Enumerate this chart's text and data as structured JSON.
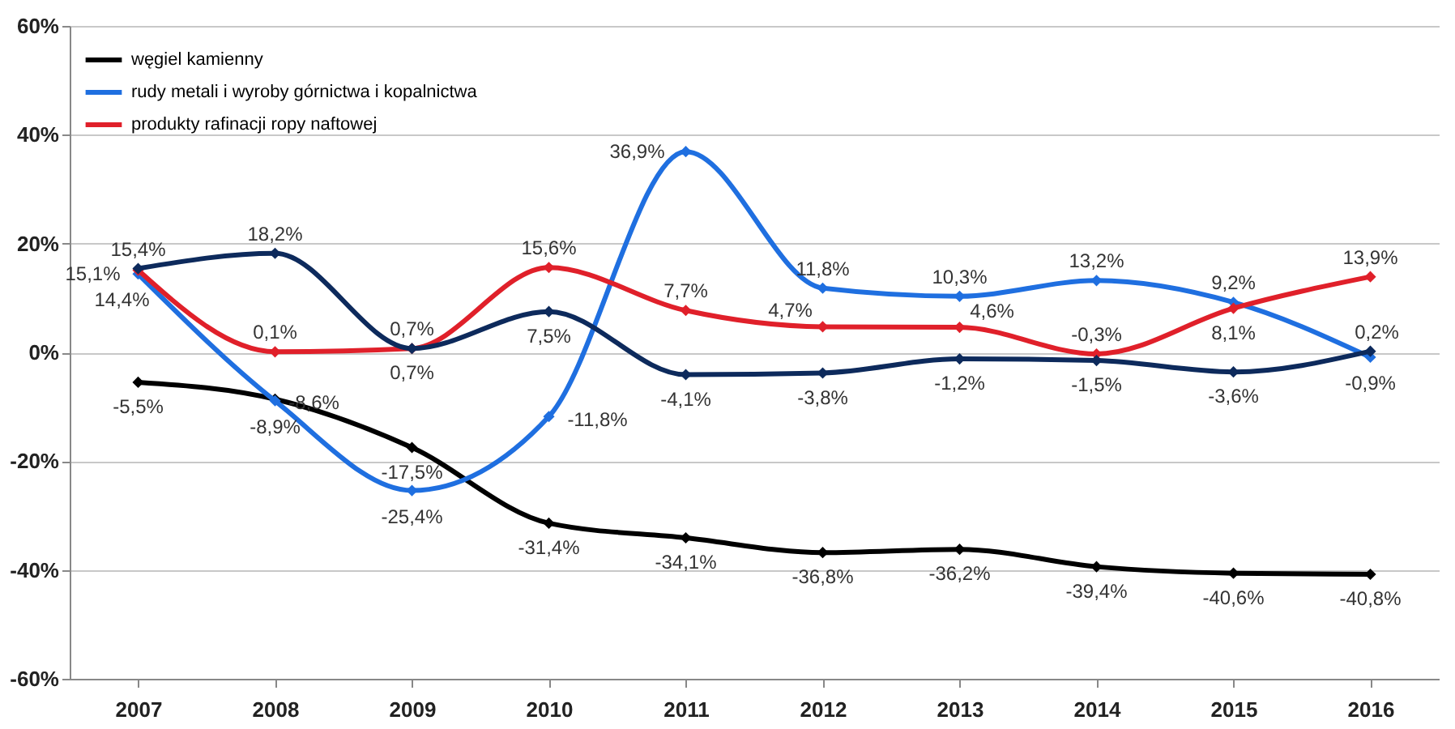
{
  "chart_data": {
    "type": "line",
    "categories": [
      "2007",
      "2008",
      "2009",
      "2010",
      "2011",
      "2012",
      "2013",
      "2014",
      "2015",
      "2016"
    ],
    "series": [
      {
        "name": "węgiel kamienny",
        "color": "#000000",
        "values": [
          -5.5,
          -8.6,
          -17.5,
          -31.4,
          -34.1,
          -36.8,
          -36.2,
          -39.4,
          -40.6,
          -40.8
        ],
        "value_labels": [
          "-5,5%",
          "-8,6%",
          "-17,5%",
          "-31,4%",
          "-34,1%",
          "-36,8%",
          "-36,2%",
          "-39,4%",
          "-40,6%",
          "-40,8%"
        ]
      },
      {
        "name": "rudy metali i wyroby górnictwa i kopalnictwa",
        "color": "#1f6fe0",
        "values": [
          14.4,
          -8.9,
          -25.4,
          -11.8,
          36.9,
          11.8,
          10.3,
          13.2,
          9.2,
          -0.9
        ],
        "value_labels": [
          "14,4%",
          "-8,9%",
          "-25,4%",
          "-11,8%",
          "36,9%",
          "11,8%",
          "10,3%",
          "13,2%",
          "9,2%",
          "-0,9%"
        ]
      },
      {
        "name": "produkty rafinacji ropy naftowej",
        "color": "#e0202a",
        "values": [
          15.1,
          0.1,
          0.7,
          15.6,
          7.7,
          4.7,
          4.6,
          -0.3,
          8.1,
          13.9
        ],
        "value_labels": [
          "15,1%",
          "0,1%",
          "0,7%",
          "15,6%",
          "7,7%",
          "4,7%",
          "4,6%",
          "-0,3%",
          "8,1%",
          "13,9%"
        ]
      },
      {
        "color": "#0d2a5c",
        "values": [
          15.4,
          18.2,
          0.7,
          7.5,
          -4.1,
          -3.8,
          -1.2,
          -1.5,
          -3.6,
          0.2
        ],
        "value_labels": [
          "15,4%",
          "18,2%",
          "0,7%",
          "7,5%",
          "-4,1%",
          "-3,8%",
          "-1,2%",
          "-1,5%",
          "-3,6%",
          "0,2%"
        ]
      }
    ],
    "ylim": [
      -60,
      60
    ],
    "yticks": [
      {
        "value": -60,
        "label": "-60%"
      },
      {
        "value": -40,
        "label": "-40%"
      },
      {
        "value": -20,
        "label": "-20%"
      },
      {
        "value": 0,
        "label": "0%"
      },
      {
        "value": 20,
        "label": "20%"
      },
      {
        "value": 40,
        "label": "40%"
      },
      {
        "value": 60,
        "label": "60%"
      }
    ],
    "grid": "y",
    "legend": "top left",
    "marker": "diamond",
    "line_style": "solid"
  }
}
